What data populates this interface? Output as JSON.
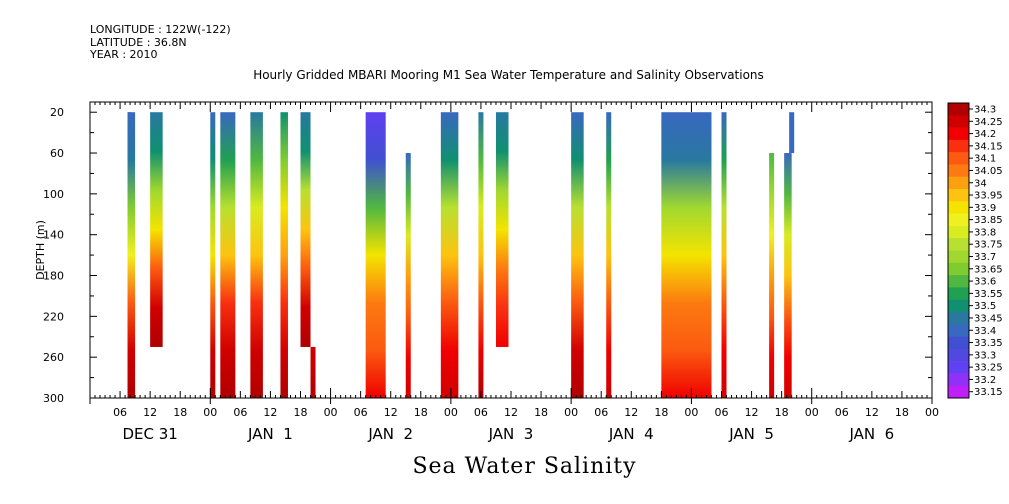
{
  "header": {
    "longitude": "LONGITUDE : 122W(-122)",
    "latitude": "LATITUDE : 36.8N",
    "year": "YEAR : 2010"
  },
  "chart_data": {
    "type": "heatmap",
    "title": "Hourly Gridded MBARI Mooring M1 Sea Water Temperature and Salinity Observations",
    "xlabel": "Sea Water Salinity",
    "ylabel": "DEPTH (m)",
    "x_unit": "hours since 2009-12-31 00:00",
    "xlim": [
      0,
      168
    ],
    "ylim": [
      300,
      10
    ],
    "y_ticks": [
      20,
      60,
      100,
      140,
      180,
      220,
      260,
      300
    ],
    "x_hour_ticks": [
      "06",
      "12",
      "18",
      "00",
      "06",
      "12",
      "18",
      "00",
      "06",
      "12",
      "18",
      "00",
      "06",
      "12",
      "18",
      "00",
      "06",
      "12",
      "18",
      "00",
      "06",
      "12",
      "18",
      "00",
      "06",
      "12",
      "18",
      "00"
    ],
    "x_day_labels": [
      "DEC 31",
      "JAN  1",
      "JAN  2",
      "JAN  3",
      "JAN  4",
      "JAN  5",
      "JAN  6"
    ],
    "colorbar": {
      "levels": [
        "34.3",
        "34.25",
        "34.2",
        "34.15",
        "34.1",
        "34.05",
        "34",
        "33.95",
        "33.9",
        "33.85",
        "33.8",
        "33.75",
        "33.7",
        "33.65",
        "33.6",
        "33.55",
        "33.5",
        "33.45",
        "33.4",
        "33.35",
        "33.3",
        "33.25",
        "33.2",
        "33.15"
      ],
      "colors": [
        "#b00000",
        "#d00000",
        "#f00000",
        "#f83010",
        "#fb5a10",
        "#fc7a10",
        "#fca010",
        "#fcc410",
        "#f4e400",
        "#f0f020",
        "#d8ec20",
        "#b8e030",
        "#a0d830",
        "#80cc30",
        "#50b840",
        "#20a050",
        "#109070",
        "#2878a0",
        "#3868c0",
        "#4050d0",
        "#5048e0",
        "#6040f0",
        "#9030f8",
        "#c020f8"
      ]
    },
    "columns": [
      {
        "x0": 7.5,
        "x1": 9,
        "top": 20,
        "bottom": 300,
        "profile": [
          33.35,
          33.4,
          33.6,
          33.8,
          34.05,
          34.2,
          34.25
        ]
      },
      {
        "x0": 12,
        "x1": 14.5,
        "top": 20,
        "bottom": 250,
        "profile": [
          33.4,
          33.45,
          33.65,
          33.85,
          34.05,
          34.2,
          34.25
        ]
      },
      {
        "x0": 24,
        "x1": 25,
        "top": 20,
        "bottom": 300,
        "profile": [
          33.35,
          33.45,
          33.65,
          33.85,
          34.05,
          34.2,
          34.25
        ]
      },
      {
        "x0": 26,
        "x1": 29,
        "top": 20,
        "bottom": 300,
        "profile": [
          33.35,
          33.5,
          33.7,
          33.9,
          34.1,
          34.2,
          34.25
        ]
      },
      {
        "x0": 32,
        "x1": 34.5,
        "top": 20,
        "bottom": 300,
        "profile": [
          33.4,
          33.55,
          33.75,
          33.9,
          34.1,
          34.2,
          34.25
        ]
      },
      {
        "x0": 38,
        "x1": 39.5,
        "top": 20,
        "bottom": 300,
        "profile": [
          33.45,
          33.6,
          33.85,
          33.95,
          34.1,
          34.2,
          34.25
        ]
      },
      {
        "x0": 42,
        "x1": 44,
        "top": 20,
        "bottom": 250,
        "profile": [
          33.4,
          33.45,
          33.7,
          33.9,
          34.05,
          34.2,
          34.25
        ]
      },
      {
        "x0": 44,
        "x1": 45,
        "top": 250,
        "bottom": 300,
        "profile": [
          34.2,
          34.25
        ]
      },
      {
        "x0": 7.5,
        "x1": 8.2,
        "top": 20,
        "bottom": 300,
        "profile": [
          33.35,
          33.4,
          33.6,
          33.8,
          34.05,
          34.2,
          34.25
        ]
      },
      {
        "x0": 55,
        "x1": 59,
        "top": 20,
        "bottom": 300,
        "profile": [
          33.2,
          33.3,
          33.55,
          33.85,
          34.0,
          34.05,
          34.15
        ]
      },
      {
        "x0": 63,
        "x1": 64,
        "top": 60,
        "bottom": 300,
        "profile": [
          33.35,
          33.55,
          33.75,
          33.95,
          34.05,
          34.15,
          34.2
        ]
      },
      {
        "x0": 70,
        "x1": 73.5,
        "top": 20,
        "bottom": 300,
        "profile": [
          33.35,
          33.45,
          33.7,
          33.9,
          34.05,
          34.15,
          34.2
        ]
      },
      {
        "x0": 77.5,
        "x1": 78.5,
        "top": 20,
        "bottom": 300,
        "profile": [
          33.4,
          33.55,
          33.75,
          33.9,
          34.05,
          34.15,
          34.25
        ]
      },
      {
        "x0": 81,
        "x1": 83.5,
        "top": 20,
        "bottom": 250,
        "profile": [
          33.4,
          33.45,
          33.65,
          33.85,
          34.0,
          34.1,
          34.15
        ]
      },
      {
        "x0": 96,
        "x1": 98.5,
        "top": 20,
        "bottom": 300,
        "profile": [
          33.35,
          33.45,
          33.7,
          33.9,
          34.05,
          34.2,
          34.25
        ]
      },
      {
        "x0": 103,
        "x1": 104,
        "top": 20,
        "bottom": 300,
        "profile": [
          33.35,
          33.5,
          33.7,
          33.9,
          34.05,
          34.15,
          34.2
        ]
      },
      {
        "x0": 114,
        "x1": 124,
        "top": 20,
        "bottom": 300,
        "profile": [
          33.35,
          33.4,
          33.65,
          33.85,
          34.0,
          34.05,
          34.15
        ]
      },
      {
        "x0": 126,
        "x1": 127,
        "top": 20,
        "bottom": 300,
        "profile": [
          33.35,
          33.5,
          33.7,
          33.9,
          34.05,
          34.15,
          34.2
        ]
      },
      {
        "x0": 135.5,
        "x1": 136.5,
        "top": 60,
        "bottom": 300,
        "profile": [
          33.55,
          33.65,
          33.8,
          33.95,
          34.05,
          34.15,
          34.2
        ]
      },
      {
        "x0": 138.5,
        "x1": 140,
        "top": 60,
        "bottom": 300,
        "profile": [
          33.35,
          33.55,
          33.75,
          33.9,
          34.05,
          34.15,
          34.2
        ]
      },
      {
        "x0": 139.5,
        "x1": 140.5,
        "top": 20,
        "bottom": 60,
        "profile": [
          33.35,
          33.35
        ]
      }
    ]
  }
}
